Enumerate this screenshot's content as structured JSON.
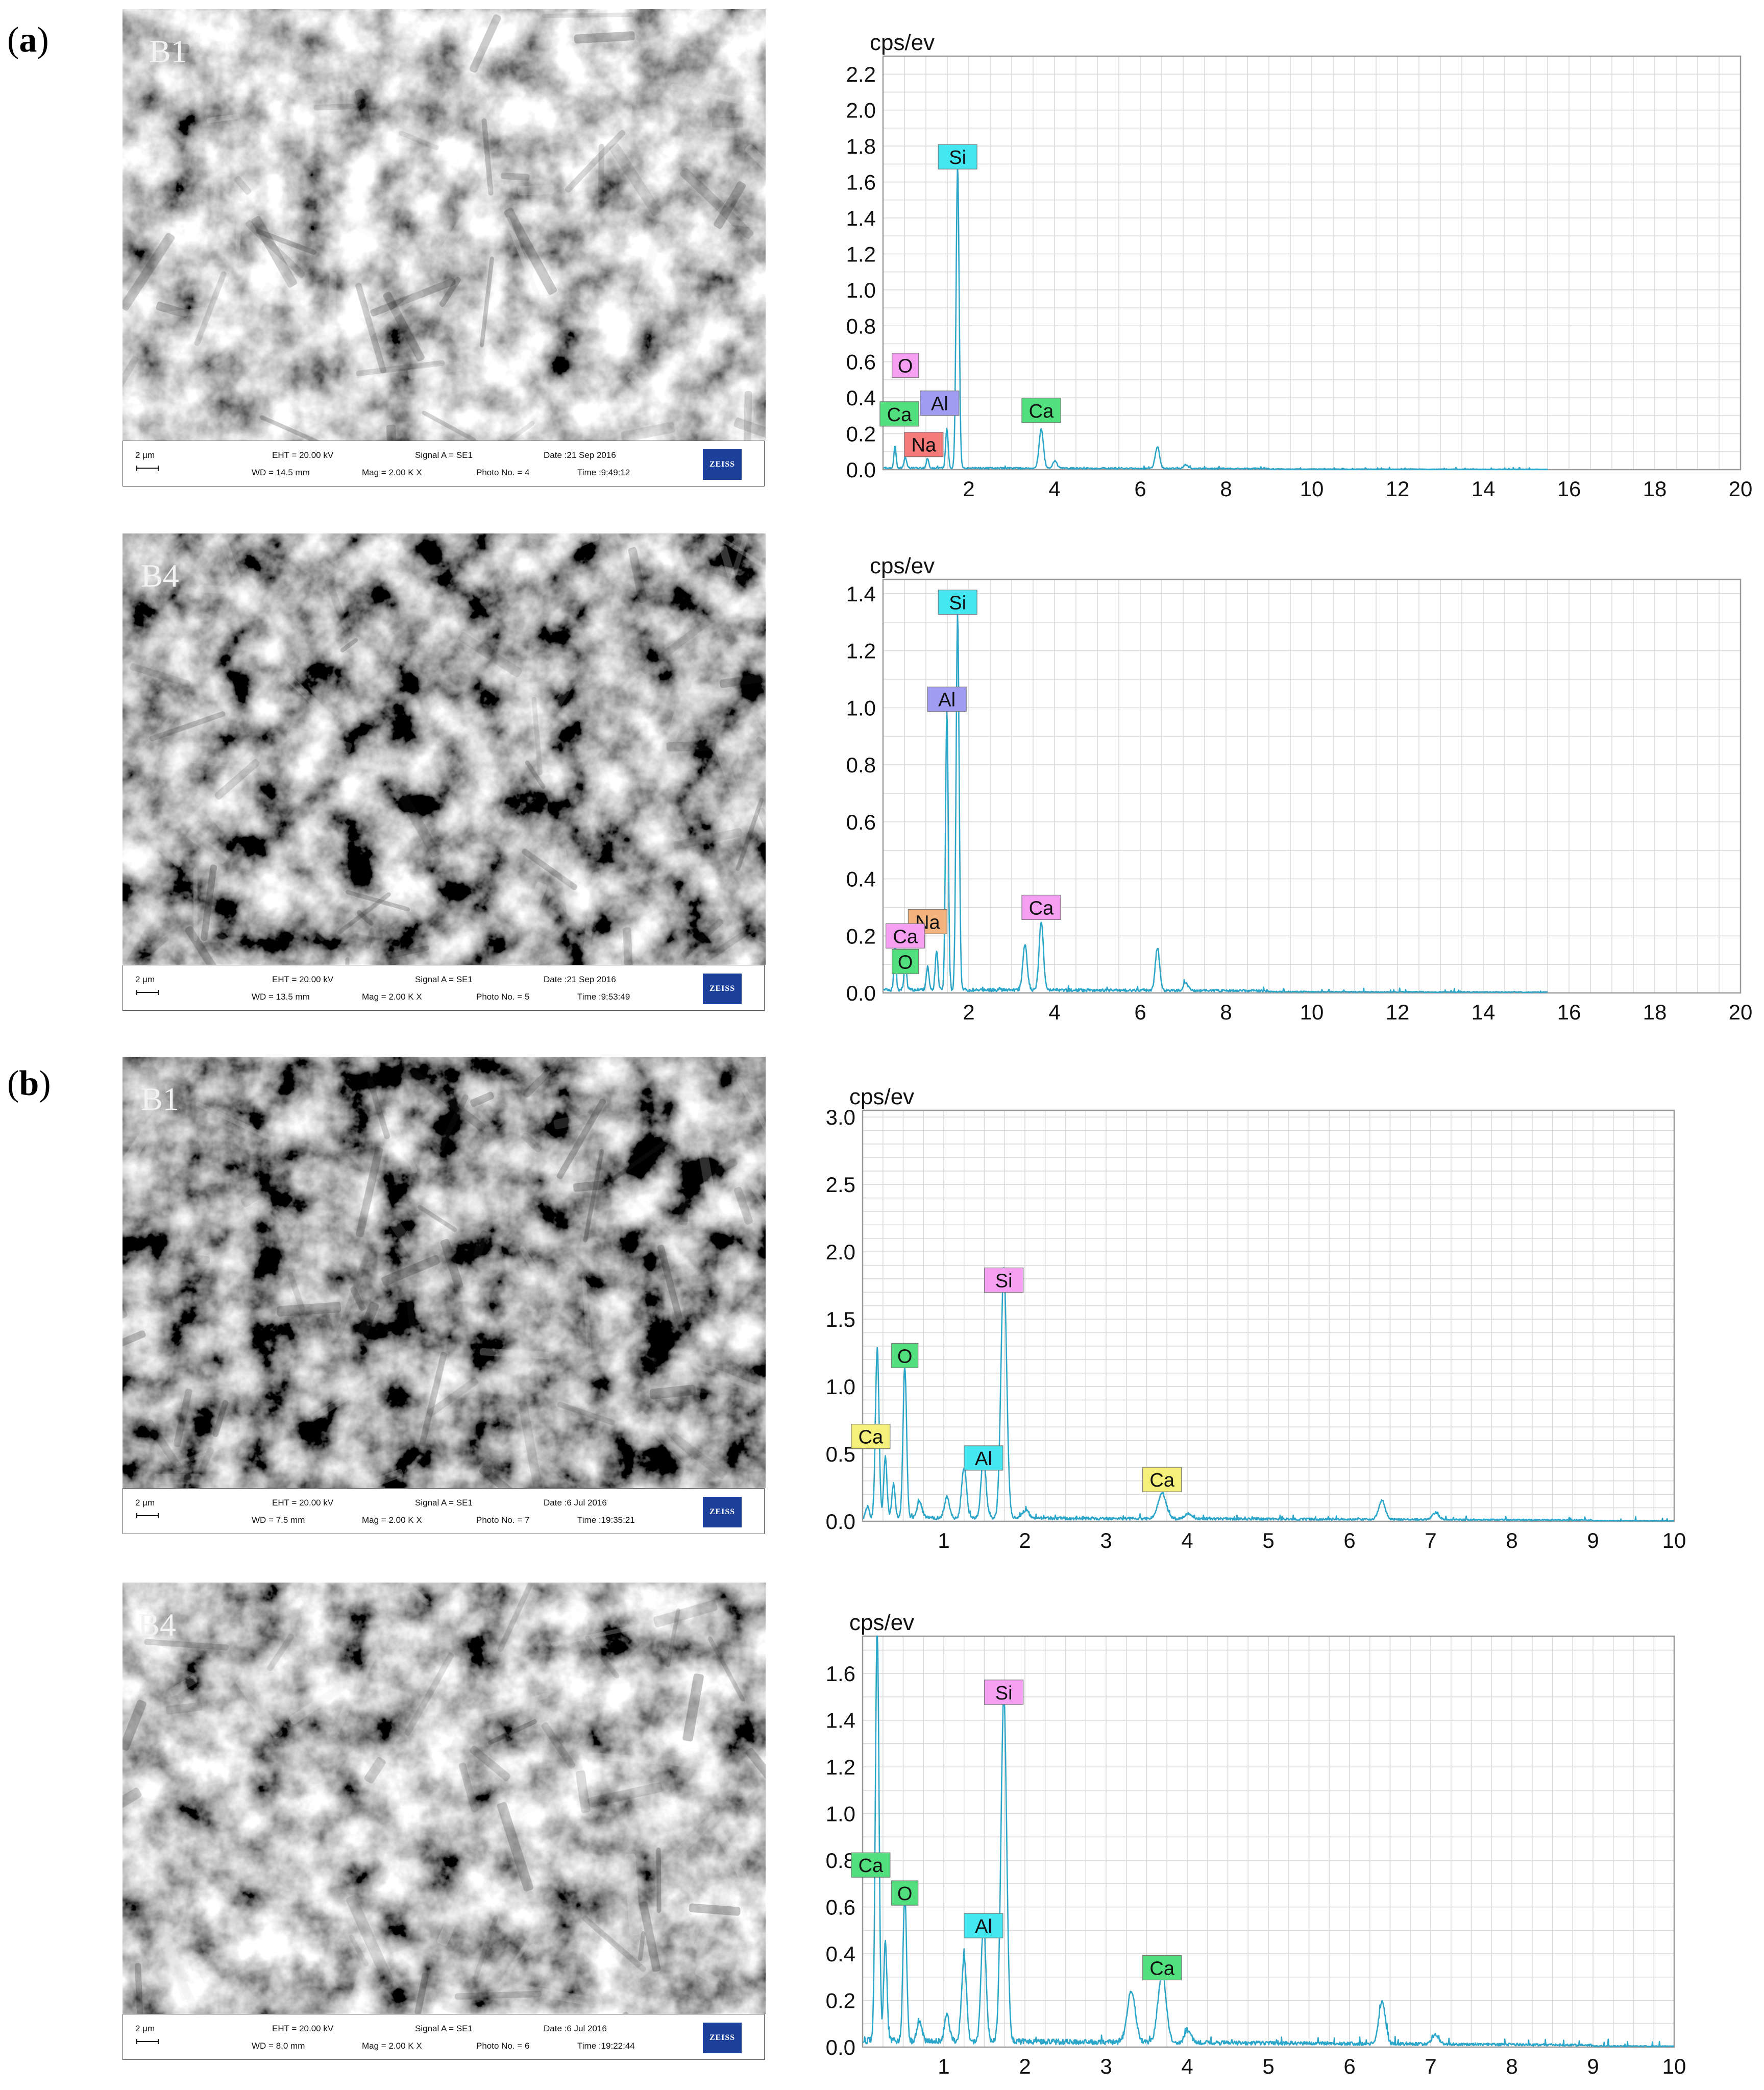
{
  "figure": {
    "part_a": {
      "letter": "a"
    },
    "part_b": {
      "letter": "b"
    }
  },
  "panels": [
    {
      "id": "a-b1",
      "sem": {
        "label": "B1",
        "scale": "2 µm",
        "eht": "EHT = 20.00 kV",
        "wd": "WD = 14.5 mm",
        "signal": "Signal A = SE1",
        "mag": "Mag = 2.00 K X",
        "date": "Date :21 Sep 2016",
        "photo": "Photo No. = 4",
        "time": "Time :9:49:12",
        "logo": "ZEISS",
        "tone": 0.62
      }
    },
    {
      "id": "a-b4",
      "sem": {
        "label": "B4",
        "scale": "2 µm",
        "eht": "EHT = 20.00 kV",
        "wd": "WD = 13.5 mm",
        "signal": "Signal A = SE1",
        "mag": "Mag = 2.00 K X",
        "date": "Date :21 Sep 2016",
        "photo": "Photo No. = 5",
        "time": "Time :9:53:49",
        "logo": "ZEISS",
        "tone": 0.42
      }
    },
    {
      "id": "b-b1",
      "sem": {
        "label": "B1",
        "scale": "2 µm",
        "eht": "EHT = 20.00 kV",
        "wd": "WD = 7.5 mm",
        "signal": "Signal A = SE1",
        "mag": "Mag = 2.00 K X",
        "date": "Date :6 Jul 2016",
        "photo": "Photo No. = 7",
        "time": "Time :19:35:21",
        "logo": "ZEISS",
        "tone": 0.36
      }
    },
    {
      "id": "b-b4",
      "sem": {
        "label": "B4",
        "scale": "2 µm",
        "eht": "EHT = 20.00 kV",
        "wd": "WD = 8.0 mm",
        "signal": "Signal A = SE1",
        "mag": "Mag = 2.00 K X",
        "date": "Date :6 Jul 2016",
        "photo": "Photo No. = 6",
        "time": "Time :19:22:44",
        "logo": "ZEISS",
        "tone": 0.55
      }
    }
  ],
  "chart_data": [
    {
      "type": "line",
      "ylabel": "cps/ev",
      "xlim": [
        0,
        20
      ],
      "ylim": [
        0,
        2.3
      ],
      "xticks": [
        2,
        4,
        6,
        8,
        10,
        12,
        14,
        16,
        18,
        20
      ],
      "yticks": [
        0.0,
        0.2,
        0.4,
        0.6,
        0.8,
        1.0,
        1.2,
        1.4,
        1.6,
        1.8,
        2.0,
        2.2
      ],
      "x_minor_step": 0.5,
      "y_minor_step": 0.1,
      "ytick_decimals": 1,
      "grid": true,
      "line_color": "#2ba6c9",
      "data_end": 15.5,
      "noise": 0.004,
      "peaks": [
        {
          "x": 0.28,
          "y": 0.12,
          "w": 0.025
        },
        {
          "x": 0.52,
          "y": 0.06,
          "w": 0.03
        },
        {
          "x": 1.04,
          "y": 0.05,
          "w": 0.03
        },
        {
          "x": 1.49,
          "y": 0.22,
          "w": 0.03
        },
        {
          "x": 1.74,
          "y": 1.68,
          "w": 0.035
        },
        {
          "x": 3.69,
          "y": 0.22,
          "w": 0.05
        },
        {
          "x": 4.01,
          "y": 0.04,
          "w": 0.05
        },
        {
          "x": 6.4,
          "y": 0.12,
          "w": 0.05
        },
        {
          "x": 7.06,
          "y": 0.02,
          "w": 0.05
        }
      ],
      "labels": [
        {
          "text": "Si",
          "x": 1.74,
          "y": 1.74,
          "color": "#44e6f0"
        },
        {
          "text": "O",
          "x": 0.52,
          "y": 0.58,
          "color": "#f59ff2"
        },
        {
          "text": "Al",
          "x": 1.32,
          "y": 0.37,
          "color": "#a09cf2"
        },
        {
          "text": "Ca",
          "x": 0.38,
          "y": 0.31,
          "color": "#52e07f"
        },
        {
          "text": "Na",
          "x": 0.95,
          "y": 0.14,
          "color": "#f57a7a"
        },
        {
          "text": "Ca",
          "x": 3.69,
          "y": 0.33,
          "color": "#52e07f"
        }
      ]
    },
    {
      "type": "line",
      "ylabel": "cps/ev",
      "xlim": [
        0,
        20
      ],
      "ylim": [
        0,
        1.45
      ],
      "xticks": [
        2,
        4,
        6,
        8,
        10,
        12,
        14,
        16,
        18,
        20
      ],
      "yticks": [
        0.0,
        0.2,
        0.4,
        0.6,
        0.8,
        1.0,
        1.2,
        1.4
      ],
      "x_minor_step": 0.5,
      "y_minor_step": 0.1,
      "ytick_decimals": 1,
      "grid": true,
      "line_color": "#2ba6c9",
      "data_end": 15.5,
      "noise": 0.005,
      "peaks": [
        {
          "x": 0.28,
          "y": 0.16,
          "w": 0.025
        },
        {
          "x": 0.52,
          "y": 0.1,
          "w": 0.03
        },
        {
          "x": 1.04,
          "y": 0.08,
          "w": 0.03
        },
        {
          "x": 1.25,
          "y": 0.14,
          "w": 0.03
        },
        {
          "x": 1.49,
          "y": 0.98,
          "w": 0.032
        },
        {
          "x": 1.74,
          "y": 1.32,
          "w": 0.035
        },
        {
          "x": 3.31,
          "y": 0.16,
          "w": 0.05
        },
        {
          "x": 3.69,
          "y": 0.24,
          "w": 0.05
        },
        {
          "x": 6.4,
          "y": 0.15,
          "w": 0.05
        },
        {
          "x": 7.06,
          "y": 0.03,
          "w": 0.05
        }
      ],
      "labels": [
        {
          "text": "Si",
          "x": 1.74,
          "y": 1.37,
          "color": "#44e6f0"
        },
        {
          "text": "Al",
          "x": 1.49,
          "y": 1.03,
          "color": "#a09cf2"
        },
        {
          "text": "Na",
          "x": 1.04,
          "y": 0.25,
          "color": "#f2b37e"
        },
        {
          "text": "Ca",
          "x": 0.52,
          "y": 0.2,
          "color": "#f59ff2"
        },
        {
          "text": "O",
          "x": 0.52,
          "y": 0.11,
          "color": "#52e07f"
        },
        {
          "text": "Ca",
          "x": 3.69,
          "y": 0.3,
          "color": "#f59ff2"
        }
      ]
    },
    {
      "type": "line",
      "ylabel": "cps/ev",
      "xlim": [
        0,
        10
      ],
      "ylim": [
        0,
        3.05
      ],
      "xticks": [
        1,
        2,
        3,
        4,
        5,
        6,
        7,
        8,
        9,
        10
      ],
      "yticks": [
        0.0,
        0.5,
        1.0,
        1.5,
        2.0,
        2.5,
        3.0
      ],
      "x_minor_step": 0.25,
      "y_minor_step": 0.1,
      "ytick_decimals": 1,
      "grid": true,
      "line_color": "#2ba6c9",
      "data_end": 10,
      "noise": 0.012,
      "peaks": [
        {
          "x": 0.06,
          "y": 0.08,
          "w": 0.02
        },
        {
          "x": 0.18,
          "y": 1.25,
          "w": 0.022
        },
        {
          "x": 0.28,
          "y": 0.45,
          "w": 0.02
        },
        {
          "x": 0.38,
          "y": 0.25,
          "w": 0.02
        },
        {
          "x": 0.52,
          "y": 1.12,
          "w": 0.022
        },
        {
          "x": 0.7,
          "y": 0.12,
          "w": 0.03
        },
        {
          "x": 1.04,
          "y": 0.16,
          "w": 0.03
        },
        {
          "x": 1.25,
          "y": 0.38,
          "w": 0.03
        },
        {
          "x": 1.49,
          "y": 0.45,
          "w": 0.03
        },
        {
          "x": 1.74,
          "y": 1.85,
          "w": 0.035
        },
        {
          "x": 2.01,
          "y": 0.06,
          "w": 0.04
        },
        {
          "x": 3.69,
          "y": 0.19,
          "w": 0.05
        },
        {
          "x": 4.01,
          "y": 0.04,
          "w": 0.04
        },
        {
          "x": 6.4,
          "y": 0.14,
          "w": 0.04
        },
        {
          "x": 7.06,
          "y": 0.05,
          "w": 0.04
        }
      ],
      "labels": [
        {
          "text": "Si",
          "x": 1.74,
          "y": 1.79,
          "color": "#f59ff2"
        },
        {
          "text": "O",
          "x": 0.52,
          "y": 1.23,
          "color": "#52e07f"
        },
        {
          "text": "Ca",
          "x": 0.1,
          "y": 0.63,
          "color": "#f5f07a"
        },
        {
          "text": "Al",
          "x": 1.49,
          "y": 0.47,
          "color": "#44e6f0"
        },
        {
          "text": "Ca",
          "x": 3.69,
          "y": 0.31,
          "color": "#f5f07a"
        }
      ]
    },
    {
      "type": "line",
      "ylabel": "cps/ev",
      "xlim": [
        0,
        10
      ],
      "ylim": [
        0,
        1.76
      ],
      "xticks": [
        1,
        2,
        3,
        4,
        5,
        6,
        7,
        8,
        9,
        10
      ],
      "yticks": [
        0.0,
        0.2,
        0.4,
        0.6,
        0.8,
        1.0,
        1.2,
        1.4,
        1.6
      ],
      "x_minor_step": 0.25,
      "y_minor_step": 0.1,
      "ytick_decimals": 1,
      "grid": true,
      "line_color": "#2ba6c9",
      "data_end": 10,
      "noise": 0.012,
      "peaks": [
        {
          "x": 0.18,
          "y": 1.78,
          "w": 0.022
        },
        {
          "x": 0.28,
          "y": 0.42,
          "w": 0.02
        },
        {
          "x": 0.52,
          "y": 0.62,
          "w": 0.022
        },
        {
          "x": 0.7,
          "y": 0.09,
          "w": 0.03
        },
        {
          "x": 1.04,
          "y": 0.12,
          "w": 0.03
        },
        {
          "x": 1.25,
          "y": 0.36,
          "w": 0.03
        },
        {
          "x": 1.49,
          "y": 0.5,
          "w": 0.03
        },
        {
          "x": 1.74,
          "y": 1.48,
          "w": 0.035
        },
        {
          "x": 3.31,
          "y": 0.22,
          "w": 0.05
        },
        {
          "x": 3.69,
          "y": 0.3,
          "w": 0.05
        },
        {
          "x": 4.01,
          "y": 0.05,
          "w": 0.04
        },
        {
          "x": 6.4,
          "y": 0.18,
          "w": 0.04
        },
        {
          "x": 7.06,
          "y": 0.04,
          "w": 0.04
        }
      ],
      "labels": [
        {
          "text": "Si",
          "x": 1.74,
          "y": 1.52,
          "color": "#f59ff2"
        },
        {
          "text": "Ca",
          "x": 0.1,
          "y": 0.78,
          "color": "#52e07f"
        },
        {
          "text": "O",
          "x": 0.52,
          "y": 0.66,
          "color": "#52e07f"
        },
        {
          "text": "Al",
          "x": 1.49,
          "y": 0.52,
          "color": "#44e6f0"
        },
        {
          "text": "Ca",
          "x": 3.69,
          "y": 0.34,
          "color": "#52e07f"
        }
      ]
    }
  ]
}
